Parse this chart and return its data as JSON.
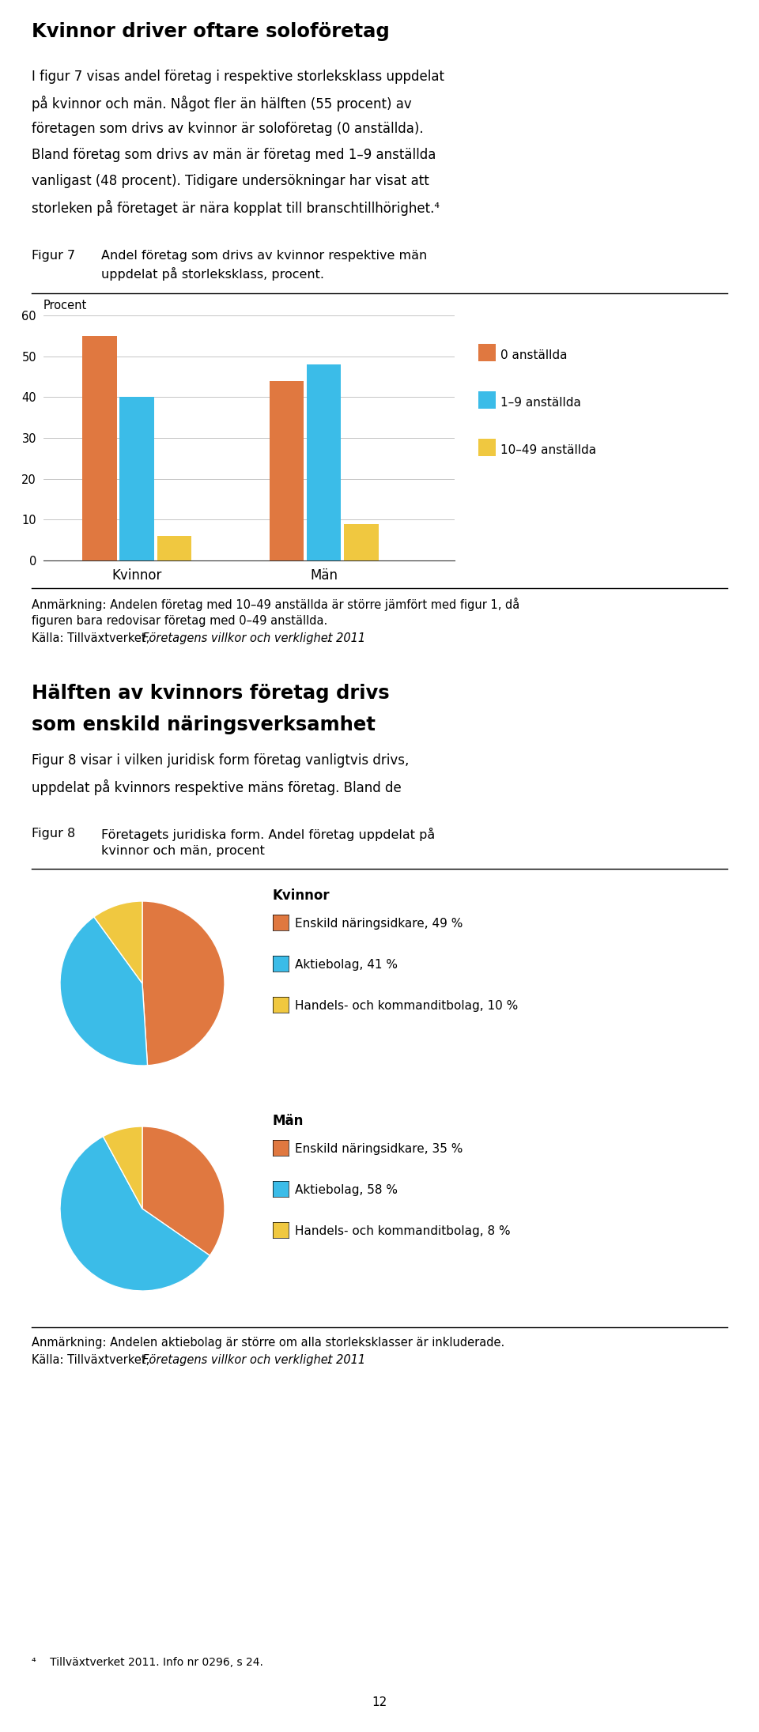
{
  "title1": "Kvinnor driver oftare soloföretag",
  "body1_lines": [
    "I figur 7 visas andel företag i respektive storleksklass uppdelat",
    "på kvinnor och män. Något fler än hälften (55 procent) av",
    "företagen som drivs av kvinnor är soloföretag (0 anställda).",
    "Bland företag som drivs av män är företag med 1–9 anställda",
    "vanligast (48 procent). Tidigare undersökningar har visat att",
    "storleken på företaget är nära kopplat till branschtillhörighet.⁴"
  ],
  "fig7_label": "Figur 7",
  "fig7_caption_line1": "Andel företag som drivs av kvinnor respektive män",
  "fig7_caption_line2": "uppdelat på storleksklass, procent.",
  "bar_groups": [
    "Kvinnor",
    "Män"
  ],
  "bar_categories": [
    "0 anställda",
    "1–9 anställda",
    "10–49 anställda"
  ],
  "bar_colors": [
    "#E07840",
    "#3BBCE8",
    "#F0C840"
  ],
  "bar_values": [
    [
      55,
      40,
      6
    ],
    [
      44,
      48,
      9
    ]
  ],
  "bar_ylabel": "Procent",
  "bar_ylim": [
    0,
    60
  ],
  "bar_yticks": [
    0,
    10,
    20,
    30,
    40,
    50,
    60
  ],
  "bar_note_line1": "Anmärkning: Andelen företag med 10–49 anställda är större jämfört med figur 1, då",
  "bar_note_line2": "figuren bara redovisar företag med 0–49 anställda.",
  "bar_source_pre": "Källa: Tillväxtverket, ",
  "bar_source_italic": "Företagens villkor och verklighet 2011",
  "bar_source_post": ".",
  "title2_line1": "Hälften av kvinnors företag drivs",
  "title2_line2": "som enskild näringsverksamhet",
  "body2_lines": [
    "Figur 8 visar i vilken juridisk form företag vanligtvis drivs,",
    "uppdelat på kvinnors respektive mäns företag. Bland de"
  ],
  "fig8_label": "Figur 8",
  "fig8_caption_line1": "Företagets juridiska form. Andel företag uppdelat på",
  "fig8_caption_line2": "kvinnor och män, procent",
  "pie_colors": [
    "#E07840",
    "#3BBCE8",
    "#F0C840"
  ],
  "pie_k_values": [
    49,
    41,
    10
  ],
  "pie_m_values": [
    35,
    58,
    8
  ],
  "pie_k_header": "Kvinnor",
  "pie_k_labels": [
    "Enskild näringsidkare, 49 %",
    "Aktiebolag, 41 %",
    "Handels- och kommanditbolag, 10 %"
  ],
  "pie_m_header": "Män",
  "pie_m_labels": [
    "Enskild näringsidkare, 35 %",
    "Aktiebolag, 58 %",
    "Handels- och kommanditbolag, 8 %"
  ],
  "pie_note": "Anmärkning: Andelen aktiebolag är större om alla storleksklasser är inkluderade.",
  "pie_source_pre": "Källa: Tillväxtverket, ",
  "pie_source_italic": "Företagens villkor och verklighet 2011",
  "pie_source_post": ".",
  "footnote": "⁴    Tillväxtverket 2011. Info nr 0296, s 24.",
  "page_number": "12",
  "bg_color": "#FFFFFF"
}
